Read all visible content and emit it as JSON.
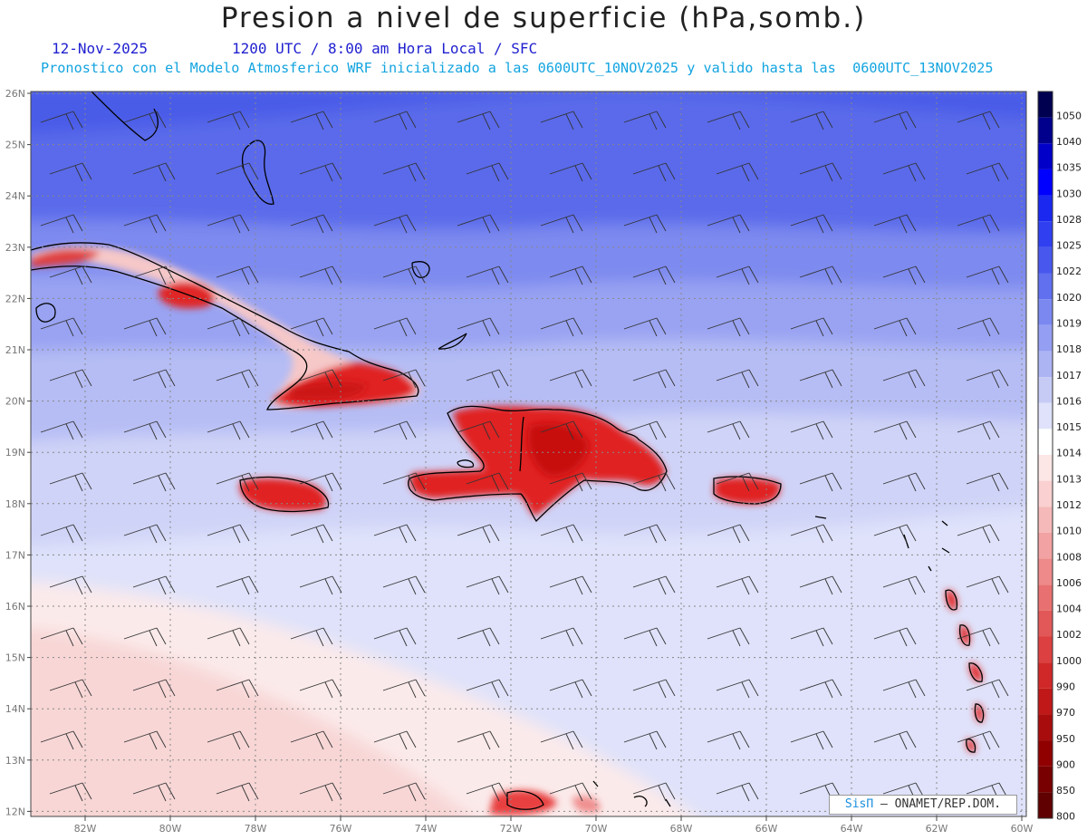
{
  "header": {
    "title": "Presion a nivel de superficie (hPa,somb.)",
    "date": "12-Nov-2025",
    "time_info": "1200 UTC / 8:00 am Hora Local / SFC",
    "model_info": "Pronostico con el Modelo Atmosferico WRF inicializado a las 0600UTC_10NOV2025 y valido hasta las  0600UTC_13NOV2025"
  },
  "map": {
    "lat_labels": [
      "26N",
      "25N",
      "24N",
      "23N",
      "22N",
      "21N",
      "20N",
      "19N",
      "18N",
      "17N",
      "16N",
      "15N",
      "14N",
      "13N",
      "12N"
    ],
    "lon_labels": [
      "82W",
      "80W",
      "78W",
      "76W",
      "74W",
      "72W",
      "70W",
      "68W",
      "66W",
      "64W",
      "62W",
      "60W"
    ],
    "colors": {
      "high_pressure": "#4a5ce8",
      "mid_pressure": "#c7ccf4",
      "neutral": "#ffffff",
      "low_pressure": "#f8d2d2",
      "land_low": "#e02020",
      "grid": "#888888"
    }
  },
  "colorbar": {
    "levels": [
      "1050",
      "1040",
      "1035",
      "1030",
      "1028",
      "1025",
      "1022",
      "1020",
      "1019",
      "1018",
      "1017",
      "1016",
      "1015",
      "1014",
      "1013",
      "1012",
      "1010",
      "1008",
      "1006",
      "1004",
      "1002",
      "1000",
      "990",
      "970",
      "950",
      "900",
      "850",
      "800"
    ],
    "colors": [
      "#000050",
      "#00008c",
      "#0000c8",
      "#0000ff",
      "#1a28f0",
      "#3040f0",
      "#4858ee",
      "#6070ee",
      "#7a88f0",
      "#949ef2",
      "#acb4f4",
      "#c6cbf6",
      "#dfe2fa",
      "#ffffff",
      "#fde6e6",
      "#fad0d0",
      "#f6b9b9",
      "#f2a2a2",
      "#ee8a8a",
      "#e87070",
      "#e25858",
      "#dc4040",
      "#d02828",
      "#c01818",
      "#a80c0c",
      "#900000",
      "#780000",
      "#600000"
    ]
  },
  "credit": {
    "sis": "SisΠ",
    "text": "– ONAMET/REP.DOM."
  }
}
